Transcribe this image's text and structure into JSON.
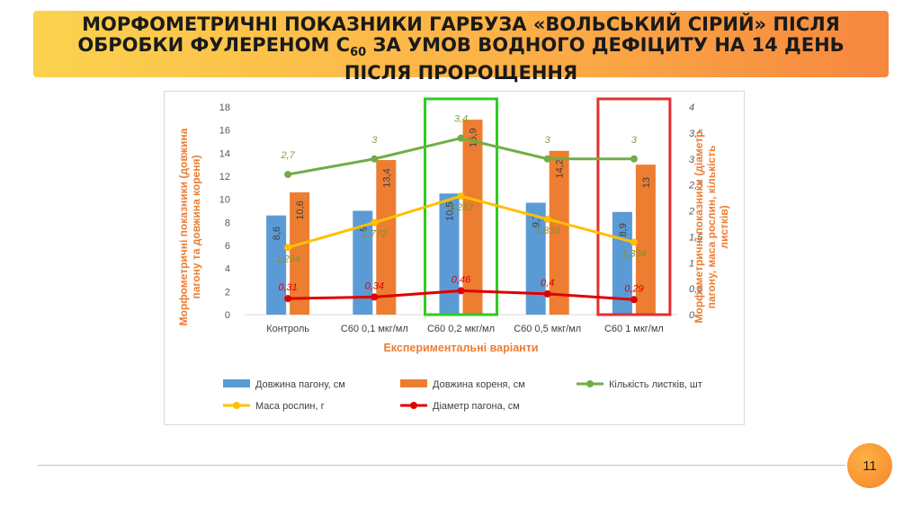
{
  "slide": {
    "title_line1": "МОРФОМЕТРИЧНІ ПОКАЗНИКИ ГАРБУЗА «ВОЛЬСЬКИЙ СІРИЙ» ПІСЛЯ",
    "title_line2_pre": "ОБРОБКИ ФУЛЕРЕНОМ С",
    "title_line2_sub": "60",
    "title_line2_post": " ЗА УМОВ ВОДНОГО ДЕФІЦИТУ НА 14 ДЕНЬ",
    "title_line3": "ПІСЛЯ ПРОРОЩЕННЯ",
    "page_number": "11"
  },
  "chart_data": {
    "type": "bar",
    "categories": [
      "Контроль",
      "С60 0,1 мкг/мл",
      "С60 0,2 мкг/мл",
      "С60 0,5 мкг/мл",
      "С60 1 мкг/мл"
    ],
    "xlabel": "Експериментальні варіанти",
    "ylabel_left": "Морфометричні показники (довжина пагону та довжина кореня)",
    "ylabel_right": "Морфометричні показники (діаметр пагону, маса рослин, кількість листків)",
    "ylim_left": [
      0,
      18
    ],
    "ylim_right": [
      0,
      4
    ],
    "yticks_left": [
      "0",
      "2",
      "4",
      "6",
      "8",
      "10",
      "12",
      "14",
      "16",
      "18"
    ],
    "yticks_right": [
      "0",
      "0,5",
      "1",
      "1,5",
      "2",
      "2,5",
      "3",
      "3,5",
      "4"
    ],
    "grid": false,
    "legend_position": "bottom",
    "highlighted_categories": [
      "С60 0,2 мкг/мл",
      "С60 1 мкг/мл"
    ],
    "highlight_colors": [
      "#2ecc1f",
      "#e03030"
    ],
    "bar_series": [
      {
        "name": "Довжина пагону, см",
        "axis": "left",
        "color": "#5b9bd5",
        "values": [
          8.6,
          9,
          10.5,
          9.7,
          8.9
        ],
        "labels": [
          "8,6",
          "9",
          "10,5",
          "9,7",
          "8,9"
        ]
      },
      {
        "name": "Довжина кореня, см",
        "axis": "left",
        "color": "#ed7d31",
        "values": [
          10.6,
          13.4,
          16.9,
          14.2,
          13
        ],
        "labels": [
          "10,6",
          "13,4",
          "16,9",
          "14,2",
          "13"
        ]
      }
    ],
    "line_series": [
      {
        "name": "Кількість листків, шт",
        "axis": "right",
        "color": "#70ad47",
        "label_color": "#7aa838",
        "values": [
          2.7,
          3,
          3.4,
          3,
          3
        ],
        "labels": [
          "2,7",
          "3",
          "3,4",
          "3",
          "3"
        ]
      },
      {
        "name": "Маса рослин, г",
        "axis": "right",
        "color": "#ffc000",
        "label_color": "#8c8c2a",
        "values": [
          1.294,
          1.772,
          2.283,
          1.839,
          1.394
        ],
        "labels": [
          "1,294",
          "1,772",
          "2,283",
          "1,839",
          "1,394"
        ]
      },
      {
        "name": "Діаметр пагона, см",
        "axis": "right",
        "color": "#e00000",
        "label_color": "#e00000",
        "values": [
          0.31,
          0.34,
          0.46,
          0.4,
          0.29
        ],
        "labels": [
          "0,31",
          "0,34",
          "0,46",
          "0,4",
          "0,29"
        ]
      }
    ]
  }
}
